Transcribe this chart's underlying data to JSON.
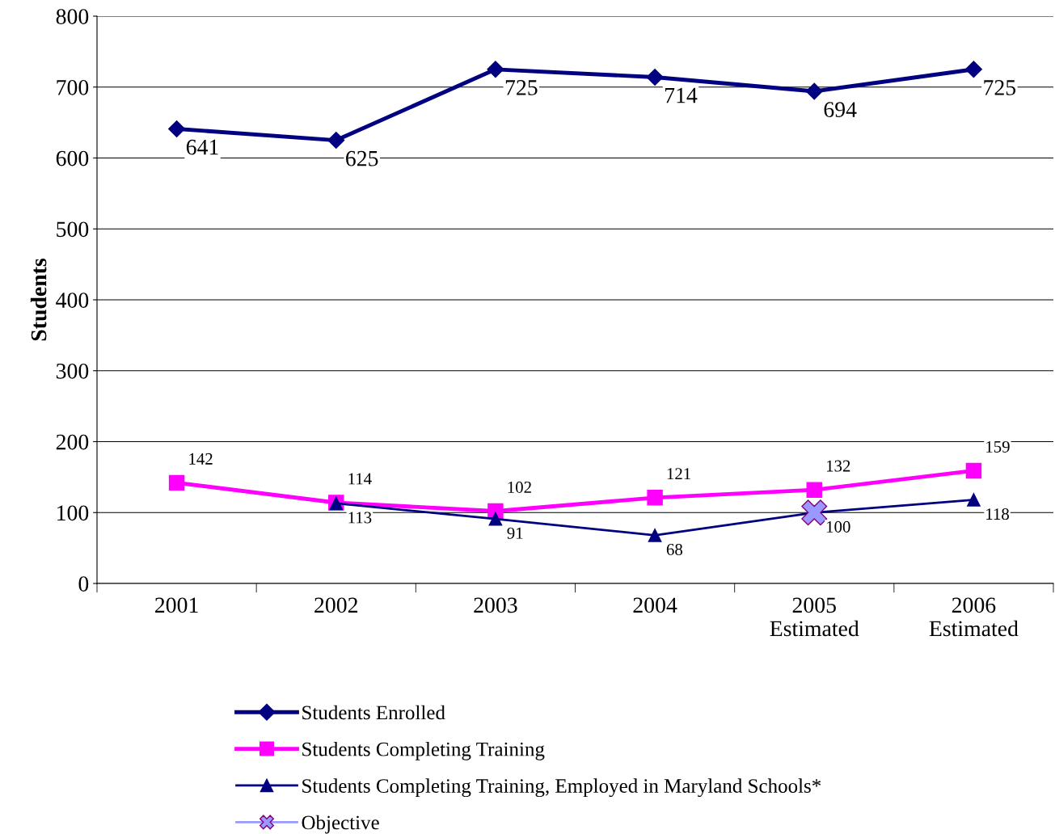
{
  "chart_data": {
    "type": "line",
    "ylabel": "Students",
    "categories": [
      "2001",
      "2002",
      "2003",
      "2004",
      "2005\nEstimated",
      "2006\nEstimated"
    ],
    "series": [
      {
        "name": "Students Enrolled",
        "color": "#000080",
        "marker": "diamond",
        "values": [
          641,
          625,
          725,
          714,
          694,
          725
        ],
        "value_labels": [
          "641",
          "625",
          "725",
          "714",
          "694",
          "725"
        ]
      },
      {
        "name": "Students Completing Training",
        "color": "#ff00ff",
        "marker": "square",
        "values": [
          142,
          114,
          102,
          121,
          132,
          159
        ],
        "value_labels": [
          "142",
          "114",
          "102",
          "121",
          "132",
          "159"
        ]
      },
      {
        "name": "Students Completing Training, Employed in Maryland Schools*",
        "color": "#000080",
        "marker": "triangle",
        "values": [
          null,
          113,
          91,
          68,
          100,
          118
        ],
        "value_labels": [
          null,
          "113",
          "91",
          "68",
          "100",
          "118"
        ]
      },
      {
        "name": "Objective",
        "color": "#9999ff",
        "marker": "cross",
        "values": [
          null,
          null,
          null,
          null,
          100,
          null
        ]
      }
    ],
    "ylim": [
      0,
      800
    ],
    "yticks": [
      0,
      100,
      200,
      300,
      400,
      500,
      600,
      700,
      800
    ],
    "grid": "y",
    "legend": "bottom"
  }
}
